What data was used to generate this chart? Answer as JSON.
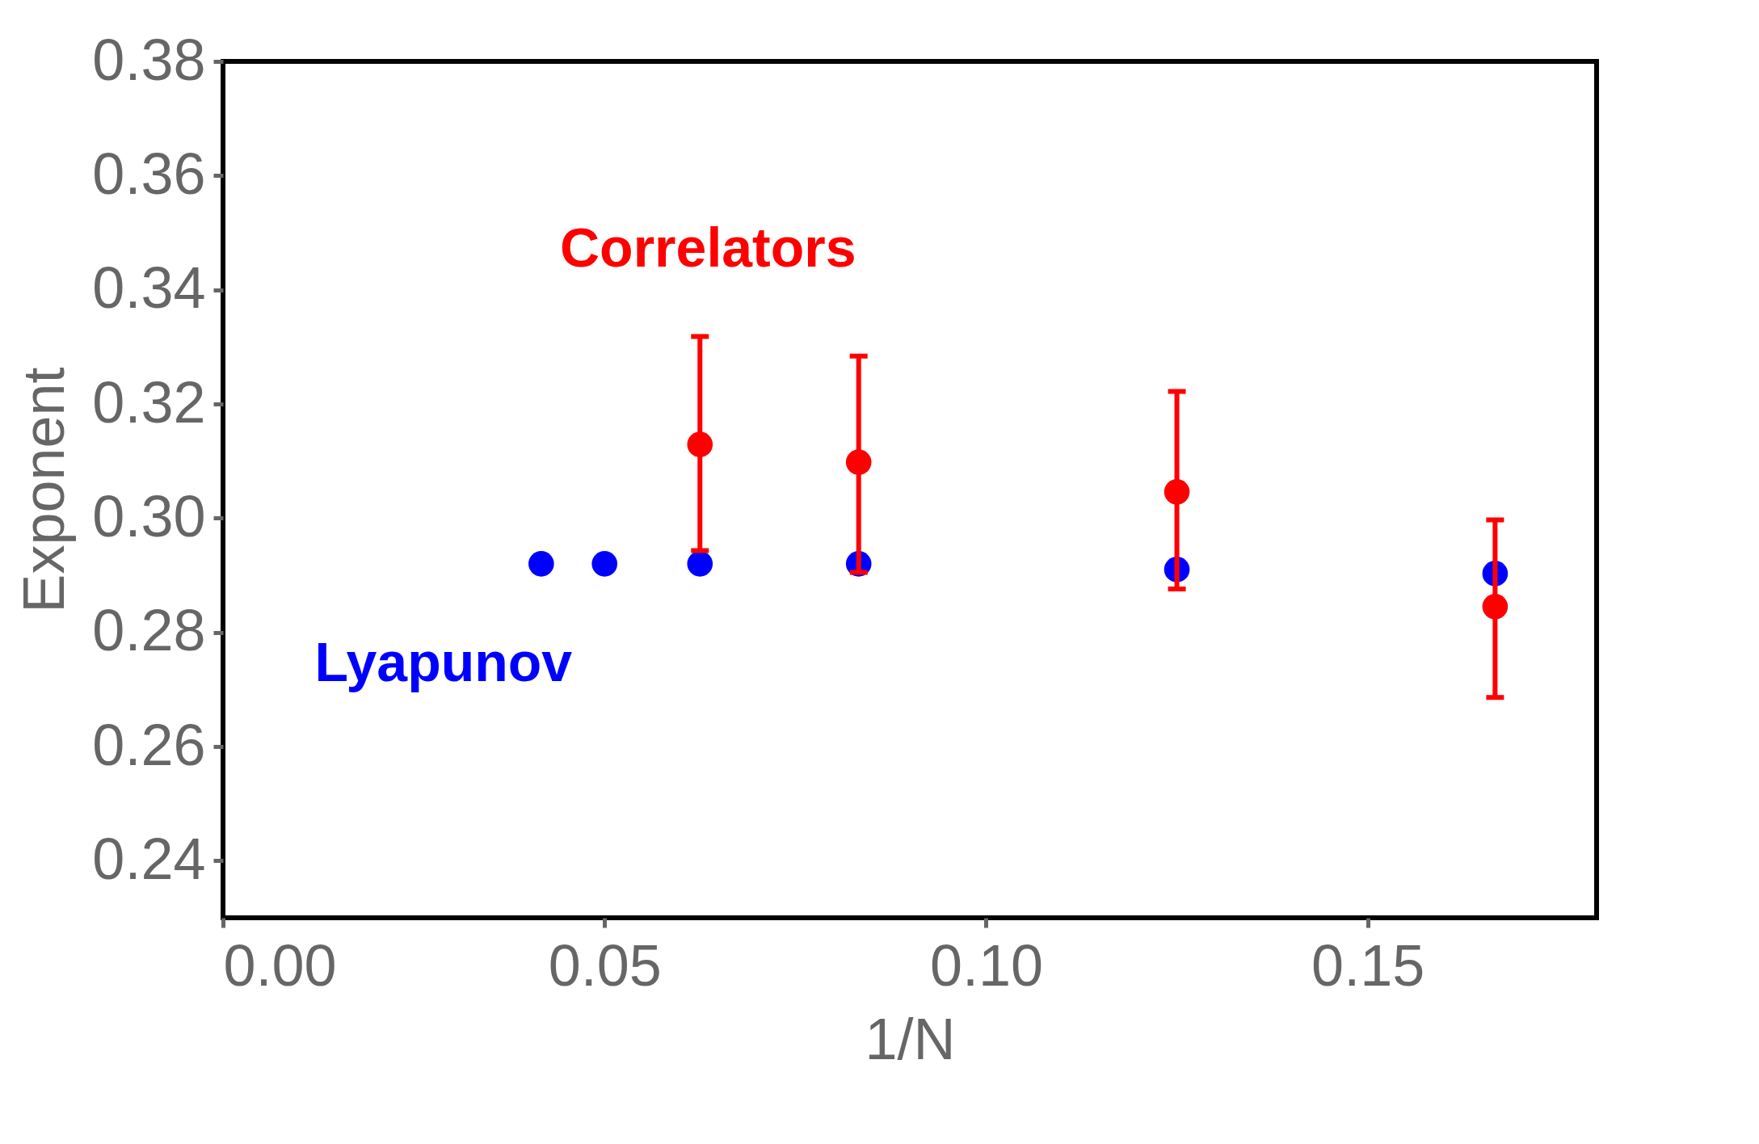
{
  "chart_data": {
    "type": "scatter",
    "xlabel": "1/N",
    "ylabel": "Exponent",
    "xlim": [
      0,
      0.18
    ],
    "ylim": [
      0.23,
      0.38
    ],
    "xticks": [
      {
        "value": 0,
        "label": "0.00"
      },
      {
        "value": 0.05,
        "label": "0.05"
      },
      {
        "value": 0.1,
        "label": "0.10"
      },
      {
        "value": 0.15,
        "label": "0.15"
      }
    ],
    "yticks": [
      {
        "value": 0.24,
        "label": "0.24"
      },
      {
        "value": 0.26,
        "label": "0.26"
      },
      {
        "value": 0.28,
        "label": "0.28"
      },
      {
        "value": 0.3,
        "label": "0.30"
      },
      {
        "value": 0.32,
        "label": "0.32"
      },
      {
        "value": 0.34,
        "label": "0.34"
      },
      {
        "value": 0.36,
        "label": "0.36"
      },
      {
        "value": 0.38,
        "label": "0.38"
      }
    ],
    "grid": false,
    "legend": false,
    "marker": "circle",
    "series": [
      {
        "name": "Correlators",
        "color": "#ff0000",
        "x": [
          0.0625,
          0.0833,
          0.125,
          0.1667
        ],
        "values": [
          0.3129,
          0.3098,
          0.3046,
          0.2845
        ],
        "errors": [
          [
            0.2943,
            0.3318
          ],
          [
            0.2905,
            0.3284
          ],
          [
            0.2876,
            0.3222
          ],
          [
            0.2686,
            0.2997
          ]
        ]
      },
      {
        "name": "Lyapunov",
        "color": "#0000ff",
        "x": [
          0.0417,
          0.05,
          0.0625,
          0.0833,
          0.125,
          0.1667
        ],
        "values": [
          0.292,
          0.292,
          0.292,
          0.292,
          0.291,
          0.2903
        ]
      }
    ]
  }
}
